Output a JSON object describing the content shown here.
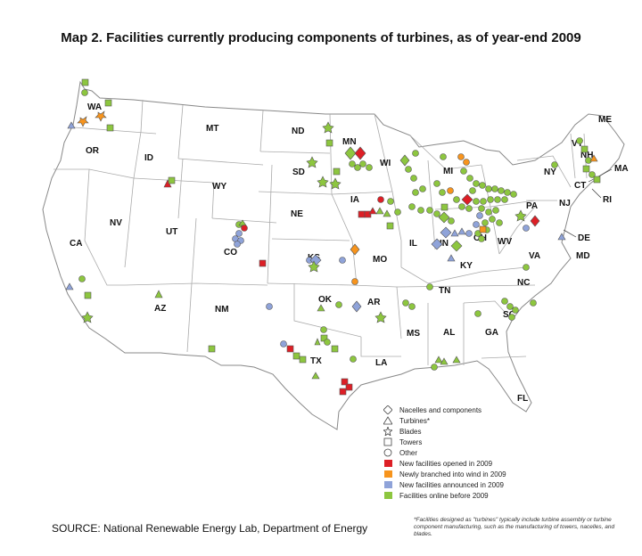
{
  "title": "Map 2. Facilities currently producing components of turbines, as of year-end 2009",
  "source": "SOURCE: National Renewable Energy Lab, Department of Energy",
  "footnote": "*Facilities designed as \"turbines\" typically include turbine assembly or turbine component manufacturing, such as the manufacturing of towers, nacelles, and blades.",
  "colors": {
    "new_opened": "#dd1f26",
    "newly_branched": "#f7941d",
    "announced": "#8fa3d9",
    "existing": "#8dc63f",
    "state_line": "#999999"
  },
  "legend": {
    "shapes": [
      {
        "shape": "diamond",
        "label": "Nacelles and components"
      },
      {
        "shape": "triangle",
        "label": "Turbines*"
      },
      {
        "shape": "star",
        "label": "Blades"
      },
      {
        "shape": "square",
        "label": "Towers"
      },
      {
        "shape": "circle",
        "label": "Other"
      }
    ],
    "colors": [
      {
        "key": "new_opened",
        "label": "New facilities opened in 2009"
      },
      {
        "key": "newly_branched",
        "label": "Newly branched into wind in 2009"
      },
      {
        "key": "announced",
        "label": "New facilities announced in 2009"
      },
      {
        "key": "existing",
        "label": "Facilities online before 2009"
      }
    ]
  },
  "states": [
    "WA",
    "OR",
    "CA",
    "NV",
    "ID",
    "MT",
    "WY",
    "UT",
    "AZ",
    "CO",
    "NM",
    "ND",
    "SD",
    "NE",
    "KS",
    "OK",
    "TX",
    "MN",
    "IA",
    "MO",
    "AR",
    "LA",
    "WI",
    "IL",
    "MI",
    "IN",
    "OH",
    "KY",
    "TN",
    "MS",
    "AL",
    "GA",
    "FL",
    "SC",
    "NC",
    "VA",
    "WV",
    "PA",
    "NY",
    "VT",
    "NH",
    "ME",
    "MA",
    "CT",
    "RI",
    "NJ",
    "DE",
    "MD"
  ]
}
